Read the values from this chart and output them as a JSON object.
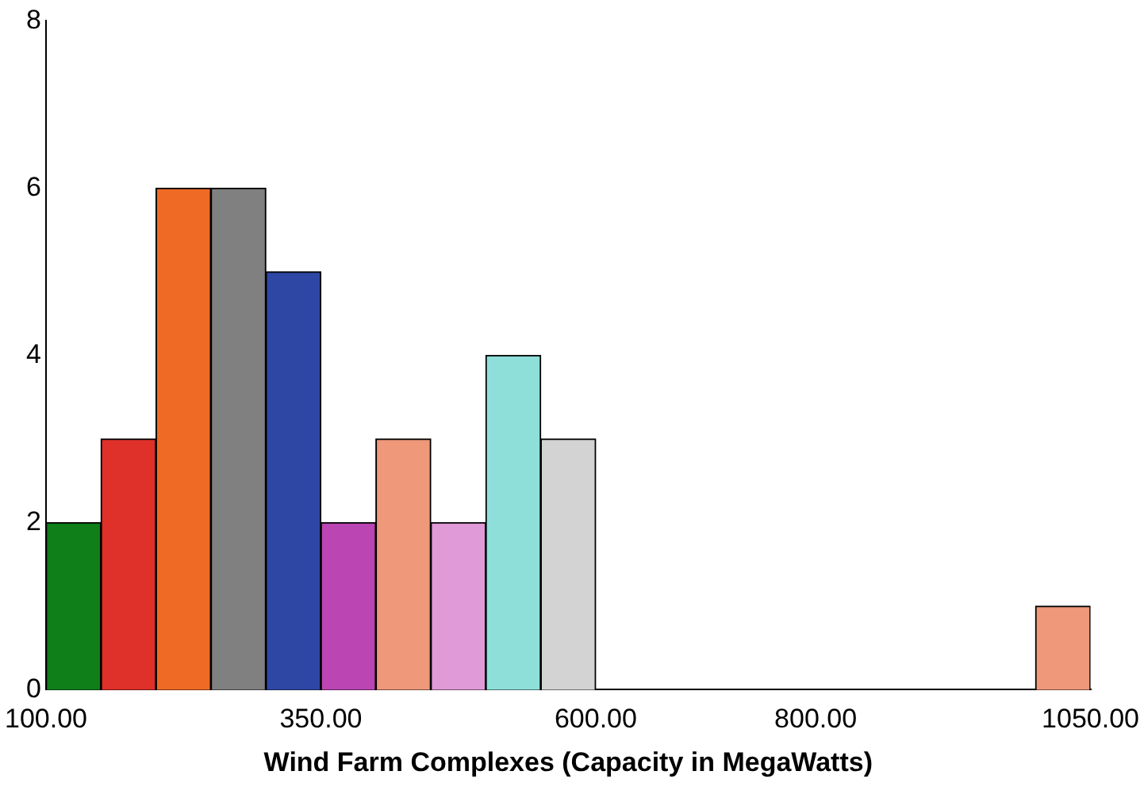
{
  "chart_data": {
    "type": "histogram",
    "xlabel": "Wind Farm Complexes (Capacity in MegaWatts)",
    "bins": [
      100,
      150,
      200,
      250,
      300,
      350,
      400,
      450,
      500,
      550,
      600,
      650,
      700,
      750,
      800,
      850,
      900,
      950,
      1000,
      1050
    ],
    "values": [
      2,
      3,
      6,
      6,
      5,
      2,
      3,
      2,
      4,
      3,
      0,
      0,
      0,
      0,
      0,
      0,
      0,
      0,
      1
    ],
    "colors": [
      "#0f7f1a",
      "#e0302a",
      "#ef6a25",
      "#808080",
      "#2e47a5",
      "#bb45b3",
      "#ef987a",
      "#e09ad8",
      "#8edfd9",
      "#d3d3d3",
      "#ef987a",
      "#ef987a",
      "#ef987a",
      "#ef987a",
      "#ef987a",
      "#ef987a",
      "#ef987a",
      "#ef987a",
      "#ef987a"
    ],
    "xlim": [
      100,
      1050
    ],
    "xticks": [
      {
        "value": 100,
        "label": "100.00"
      },
      {
        "value": 350,
        "label": "350.00"
      },
      {
        "value": 600,
        "label": "600.00"
      },
      {
        "value": 800,
        "label": "800.00"
      },
      {
        "value": 1050,
        "label": "1050.00"
      }
    ],
    "ylim": [
      0,
      8
    ],
    "yticks": [
      0,
      2,
      4,
      6,
      8
    ],
    "grid": false,
    "legend": false
  }
}
